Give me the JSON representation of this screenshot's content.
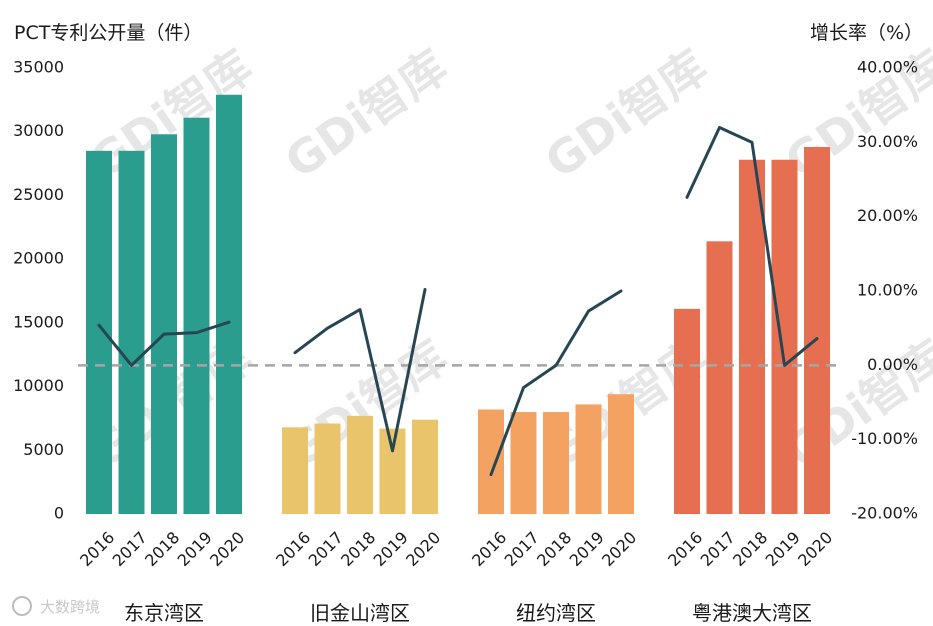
{
  "chart_data": {
    "type": "bar",
    "left_axis_title": "PCT专利公开量（件）",
    "right_axis_title": "增长率（%）",
    "y_left": {
      "min": 0,
      "max": 35000,
      "ticks": [
        "0",
        "5000",
        "10000",
        "15000",
        "20000",
        "25000",
        "30000",
        "35000"
      ]
    },
    "y_right": {
      "min": -0.2,
      "max": 0.4,
      "ticks": [
        "-20.00%",
        "-10.00%",
        "0.00%",
        "10.00%",
        "20.00%",
        "30.00%",
        "40.00%"
      ]
    },
    "zero_growth_reference_line": true,
    "groups": [
      {
        "name": "东京湾区",
        "color": "#2a9d8f",
        "years": [
          "2016",
          "2017",
          "2018",
          "2019",
          "2020"
        ],
        "values": [
          28500,
          28500,
          29800,
          31100,
          32900
        ],
        "growth": [
          0.054,
          0.0,
          0.042,
          0.044,
          0.058
        ]
      },
      {
        "name": "旧金山湾区",
        "color": "#e9c46a",
        "years": [
          "2016",
          "2017",
          "2018",
          "2019",
          "2020"
        ],
        "values": [
          6800,
          7100,
          7700,
          6700,
          7400
        ],
        "growth": [
          0.017,
          0.05,
          0.075,
          -0.115,
          0.102
        ]
      },
      {
        "name": "纽约湾区",
        "color": "#f4a261",
        "years": [
          "2016",
          "2017",
          "2018",
          "2019",
          "2020"
        ],
        "values": [
          8200,
          8000,
          8000,
          8600,
          9400
        ],
        "growth": [
          -0.147,
          -0.03,
          0.0,
          0.073,
          0.1
        ]
      },
      {
        "name": "粤港澳大湾区",
        "color": "#e76f51",
        "years": [
          "2016",
          "2017",
          "2018",
          "2019",
          "2020"
        ],
        "values": [
          16100,
          21400,
          27800,
          27800,
          28800
        ],
        "growth": [
          0.226,
          0.32,
          0.3,
          0.0,
          0.036
        ]
      }
    ]
  },
  "watermark": "GDi智库",
  "source_badge": "大数跨境"
}
